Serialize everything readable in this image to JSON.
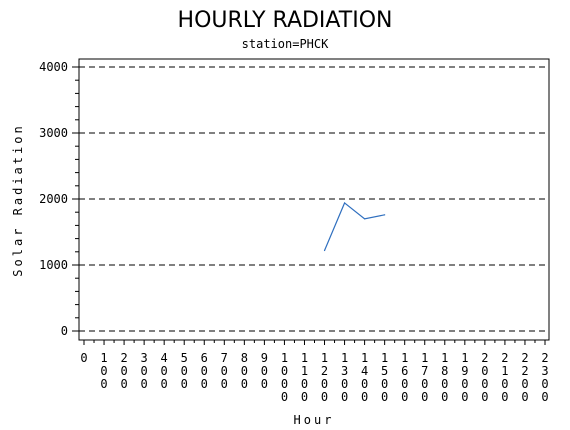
{
  "chart_data": {
    "type": "line",
    "title": "HOURLY RADIATION",
    "subtitle": "station=PHCK",
    "xlabel": "Hour",
    "ylabel": "Solar Radiation",
    "x_ticks": [
      "0",
      "100",
      "200",
      "300",
      "400",
      "500",
      "600",
      "700",
      "800",
      "900",
      "1000",
      "1100",
      "1200",
      "1300",
      "1400",
      "1500",
      "1600",
      "1700",
      "1800",
      "1900",
      "2000",
      "2100",
      "2200",
      "2300"
    ],
    "y_ticks": [
      0,
      1000,
      2000,
      3000,
      4000
    ],
    "xlim": [
      0,
      2300
    ],
    "ylim": [
      0,
      4000
    ],
    "grid": "dashed horizontal",
    "series": [
      {
        "x": [
          1200,
          1300,
          1400,
          1500
        ],
        "y": [
          1220,
          1940,
          1700,
          1760
        ],
        "color": "#2f6fbf"
      }
    ]
  }
}
